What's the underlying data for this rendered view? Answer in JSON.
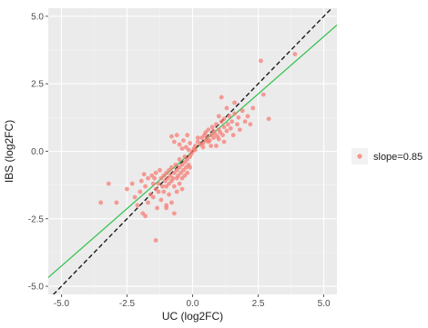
{
  "chart_data": {
    "type": "scatter",
    "xlabel": "UC (log2FC)",
    "ylabel": "IBS (log2FC)",
    "xlim": [
      -5.5,
      5.5
    ],
    "ylim": [
      -5.3,
      5.3
    ],
    "x_ticks": [
      -5.0,
      -2.5,
      0.0,
      2.5,
      5.0
    ],
    "y_ticks": [
      -5.0,
      -2.5,
      0.0,
      2.5,
      5.0
    ],
    "x_tick_labels": [
      "-5.0",
      "-2.5",
      "0.0",
      "2.5",
      "5.0"
    ],
    "y_tick_labels": [
      "-5.0",
      "-2.5",
      "0.0",
      "2.5",
      "5.0"
    ],
    "grid": true,
    "background": "#ebebeb",
    "legend": {
      "placement": "right",
      "label": "slope=0.85",
      "color": "#f8766d"
    },
    "point_color": "#f8766d",
    "lines": [
      {
        "kind": "fitted",
        "slope": 0.85,
        "intercept": 0.0,
        "color": "#2ec04b",
        "style": "solid"
      },
      {
        "kind": "identity",
        "slope": 1.0,
        "intercept": 0.0,
        "color": "#1a1a1a",
        "style": "dashed"
      }
    ],
    "points": [
      [
        -3.5,
        -1.9
      ],
      [
        -3.2,
        -1.2
      ],
      [
        -2.9,
        -1.9
      ],
      [
        -2.5,
        -1.4
      ],
      [
        -2.3,
        -1.2
      ],
      [
        -2.2,
        -1.7
      ],
      [
        -2.1,
        -2.0
      ],
      [
        -2.0,
        -1.5
      ],
      [
        -1.95,
        -1.1
      ],
      [
        -1.9,
        -2.3
      ],
      [
        -1.85,
        -0.85
      ],
      [
        -1.8,
        -1.3
      ],
      [
        -1.7,
        -1.9
      ],
      [
        -1.7,
        -1.0
      ],
      [
        -1.6,
        -1.6
      ],
      [
        -1.55,
        -0.9
      ],
      [
        -1.5,
        -1.2
      ],
      [
        -1.5,
        -1.7
      ],
      [
        -1.45,
        -1.0
      ],
      [
        -1.4,
        -1.4
      ],
      [
        -1.4,
        -0.8
      ],
      [
        -1.35,
        -2.1
      ],
      [
        -1.3,
        -1.2
      ],
      [
        -1.3,
        -1.5
      ],
      [
        -1.25,
        -0.7
      ],
      [
        -1.2,
        -1.0
      ],
      [
        -1.2,
        -1.8
      ],
      [
        -1.15,
        -1.3
      ],
      [
        -1.1,
        -0.9
      ],
      [
        -1.1,
        -1.5
      ],
      [
        -1.05,
        -1.1
      ],
      [
        -1.0,
        -0.8
      ],
      [
        -1.0,
        -1.3
      ],
      [
        -1.0,
        -2.0
      ],
      [
        -0.95,
        -1.0
      ],
      [
        -0.9,
        -0.7
      ],
      [
        -0.9,
        -1.2
      ],
      [
        -0.9,
        -1.6
      ],
      [
        -0.85,
        -0.9
      ],
      [
        -0.8,
        -1.1
      ],
      [
        -0.8,
        -0.6
      ],
      [
        -0.8,
        -1.9
      ],
      [
        -0.75,
        -1.0
      ],
      [
        -0.7,
        -0.8
      ],
      [
        -0.7,
        -1.3
      ],
      [
        -0.7,
        -2.3
      ],
      [
        -0.65,
        -0.5
      ],
      [
        -0.6,
        -1.0
      ],
      [
        -0.6,
        -0.7
      ],
      [
        -0.6,
        -1.5
      ],
      [
        -0.55,
        -0.9
      ],
      [
        -0.5,
        -0.6
      ],
      [
        -0.5,
        -1.2
      ],
      [
        -0.5,
        -0.3
      ],
      [
        -0.45,
        -0.8
      ],
      [
        -0.4,
        -1.0
      ],
      [
        -0.4,
        -0.5
      ],
      [
        -0.4,
        -1.4
      ],
      [
        -0.35,
        -0.7
      ],
      [
        -0.3,
        -0.4
      ],
      [
        -0.3,
        -0.9
      ],
      [
        -0.3,
        -0.2
      ],
      [
        -0.25,
        -0.6
      ],
      [
        -0.2,
        -0.3
      ],
      [
        -0.2,
        -0.8
      ],
      [
        -0.15,
        -0.5
      ],
      [
        -0.1,
        -0.2
      ],
      [
        -0.1,
        -0.6
      ],
      [
        -0.05,
        -0.1
      ],
      [
        -1.4,
        -3.3
      ],
      [
        -1.8,
        -2.4
      ],
      [
        -1.0,
        -2.1
      ],
      [
        -0.8,
        0.55
      ],
      [
        -0.7,
        0.35
      ],
      [
        -0.5,
        0.25
      ],
      [
        -0.4,
        0.1
      ],
      [
        -0.35,
        0.4
      ],
      [
        -0.25,
        0.15
      ],
      [
        -0.15,
        0.05
      ],
      [
        -0.1,
        0.3
      ],
      [
        0.0,
        0.0
      ],
      [
        0.05,
        0.1
      ],
      [
        0.1,
        0.05
      ],
      [
        0.1,
        0.2
      ],
      [
        0.2,
        0.35
      ],
      [
        0.3,
        0.25
      ],
      [
        0.35,
        0.5
      ],
      [
        0.4,
        0.3
      ],
      [
        0.45,
        0.6
      ],
      [
        0.5,
        0.4
      ],
      [
        0.5,
        0.7
      ],
      [
        0.55,
        0.5
      ],
      [
        0.6,
        0.8
      ],
      [
        0.65,
        0.4
      ],
      [
        0.7,
        0.6
      ],
      [
        0.75,
        0.9
      ],
      [
        0.8,
        0.5
      ],
      [
        0.8,
        0.75
      ],
      [
        0.85,
        0.65
      ],
      [
        0.9,
        1.0
      ],
      [
        0.95,
        0.55
      ],
      [
        1.0,
        0.8
      ],
      [
        1.0,
        0.45
      ],
      [
        1.05,
        0.7
      ],
      [
        1.1,
        1.1
      ],
      [
        1.15,
        0.6
      ],
      [
        1.2,
        0.9
      ],
      [
        1.2,
        0.35
      ],
      [
        1.3,
        0.75
      ],
      [
        1.35,
        1.0
      ],
      [
        1.4,
        1.3
      ],
      [
        1.45,
        0.85
      ],
      [
        1.5,
        1.1
      ],
      [
        1.55,
        0.6
      ],
      [
        1.6,
        1.4
      ],
      [
        1.7,
        1.0
      ],
      [
        1.75,
        1.25
      ],
      [
        1.8,
        0.8
      ],
      [
        1.9,
        1.5
      ],
      [
        2.0,
        1.1
      ],
      [
        2.1,
        1.3
      ],
      [
        2.2,
        1.0
      ],
      [
        2.3,
        1.6
      ],
      [
        1.1,
        2.0
      ],
      [
        1.2,
        1.2
      ],
      [
        1.3,
        1.6
      ],
      [
        1.6,
        1.8
      ],
      [
        0.9,
        0.2
      ],
      [
        0.7,
        0.2
      ],
      [
        0.4,
        0.15
      ],
      [
        -0.2,
        0.6
      ],
      [
        -0.6,
        0.6
      ],
      [
        0.2,
        0.5
      ],
      [
        0.6,
        0.35
      ],
      [
        1.0,
        1.3
      ],
      [
        2.6,
        3.35
      ],
      [
        2.7,
        2.1
      ],
      [
        2.9,
        1.2
      ],
      [
        3.9,
        3.6
      ]
    ]
  }
}
